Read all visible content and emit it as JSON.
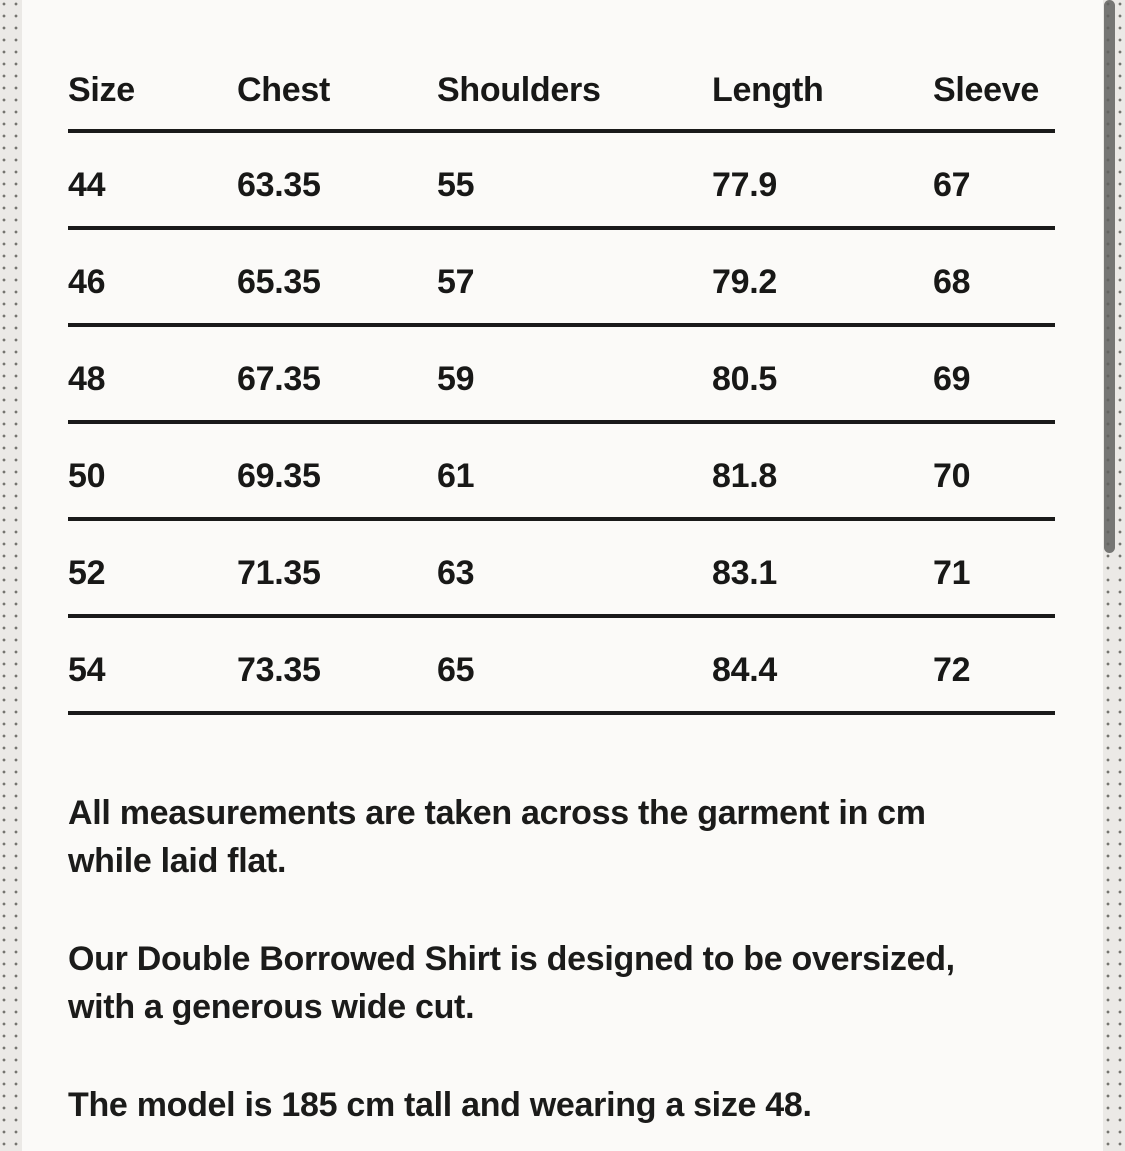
{
  "size_chart": {
    "columns": [
      "Size",
      "Chest",
      "Shoulders",
      "Length",
      "Sleeve"
    ],
    "rows": [
      [
        "44",
        "63.35",
        "55",
        "77.9",
        "67"
      ],
      [
        "46",
        "65.35",
        "57",
        "79.2",
        "68"
      ],
      [
        "48",
        "67.35",
        "59",
        "80.5",
        "69"
      ],
      [
        "50",
        "69.35",
        "61",
        "81.8",
        "70"
      ],
      [
        "52",
        "71.35",
        "63",
        "83.1",
        "71"
      ],
      [
        "54",
        "73.35",
        "65",
        "84.4",
        "72"
      ]
    ]
  },
  "notes": {
    "measurement": "All measurements are taken across the garment in cm\nwhile laid flat.",
    "fit": "Our Double Borrowed Shirt is designed to be oversized,\nwith a generous wide cut.",
    "model": "The model is 185 cm tall and wearing a size 48."
  },
  "colors": {
    "page_background": "#ebe9e6",
    "dot_pattern": "#75746f",
    "card_background": "#fbfaf8",
    "text": "#1a1a1a",
    "table_rule": "#1a1a1a",
    "scrollbar_thumb": "#626260"
  }
}
